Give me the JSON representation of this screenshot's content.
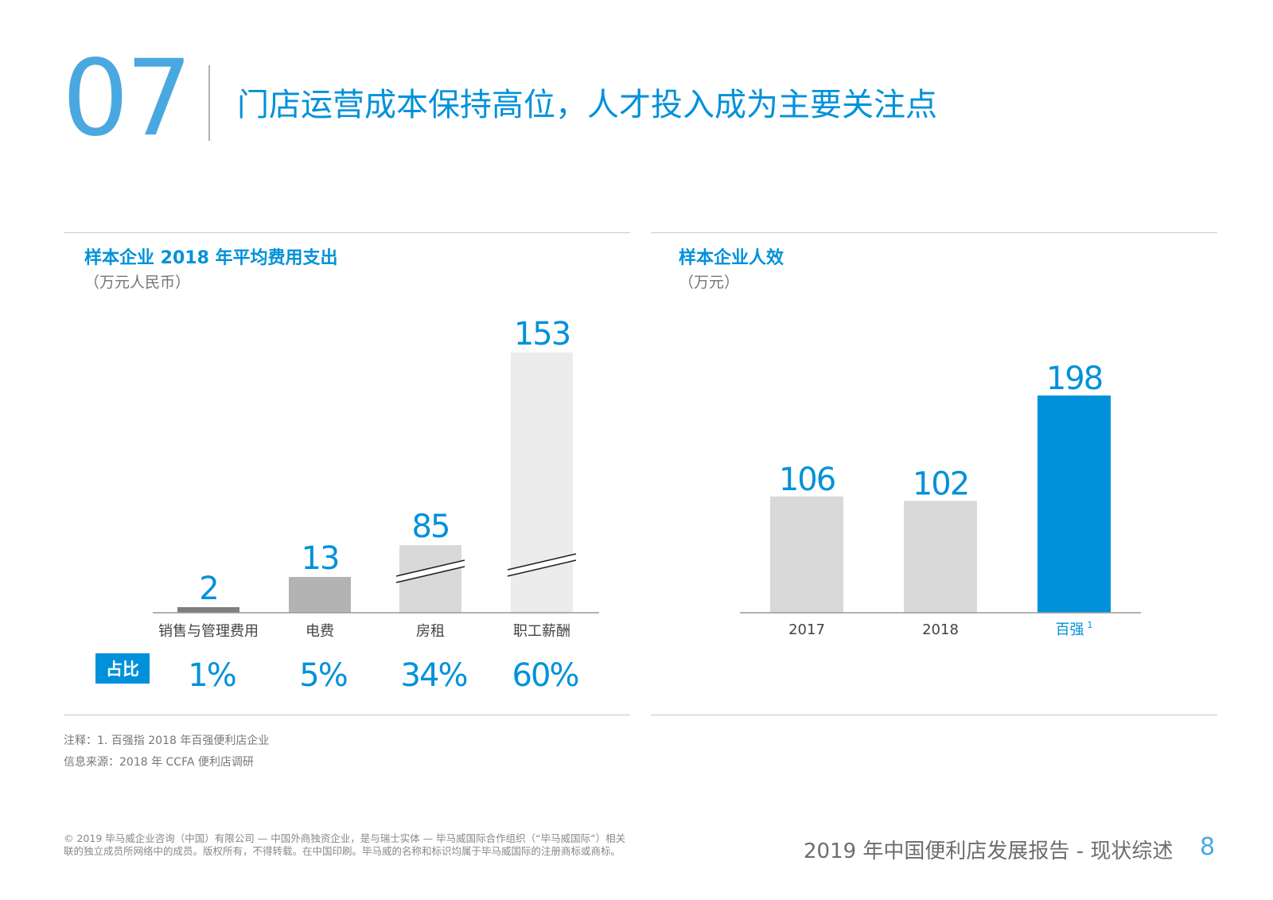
{
  "header": {
    "section_number": "07",
    "title": "门店运营成本保持高位，人才投入成为主要关注点"
  },
  "chart_data": [
    {
      "type": "bar",
      "title": "样本企业 2018 年平均费用支出",
      "subtitle": "（万元人民币）",
      "categories": [
        "销售与管理费用",
        "电费",
        "房租",
        "职工薪酬"
      ],
      "values": [
        2,
        13,
        85,
        153
      ],
      "share_label": "占比",
      "shares": [
        "1%",
        "5%",
        "34%",
        "60%"
      ],
      "broken_axis_bars": [
        "房租",
        "职工薪酬"
      ],
      "colors": [
        "#7f7f7f",
        "#b3b3b3",
        "#d9d9d9",
        "#ececec"
      ],
      "label_color": "#0091da"
    },
    {
      "type": "bar",
      "title": "样本企业人效",
      "subtitle": "（万元）",
      "categories": [
        "2017",
        "2018",
        "百强"
      ],
      "category_superscripts": [
        "",
        "",
        "1"
      ],
      "values": [
        106,
        102,
        198
      ],
      "colors": [
        "#d9d9d9",
        "#d9d9d9",
        "#0091da"
      ],
      "label_color": "#0091da"
    }
  ],
  "notes": {
    "note": "注释：1. 百强指 2018 年百强便利店企业",
    "source": "信息来源：2018 年 CCFA 便利店调研"
  },
  "footer": {
    "copyright_line1": "© 2019 毕马威企业咨询（中国）有限公司 — 中国外商独资企业，是与瑞士实体 — 毕马威国际合作组织（“毕马威国际”）相关",
    "copyright_line2": "联的独立成员所网络中的成员。版权所有，不得转载。在中国印刷。毕马威的名称和标识均属于毕马威国际的注册商标或商标。",
    "report_title": "2019 年中国便利店发展报告 - 现状综述",
    "page_number": "8"
  }
}
